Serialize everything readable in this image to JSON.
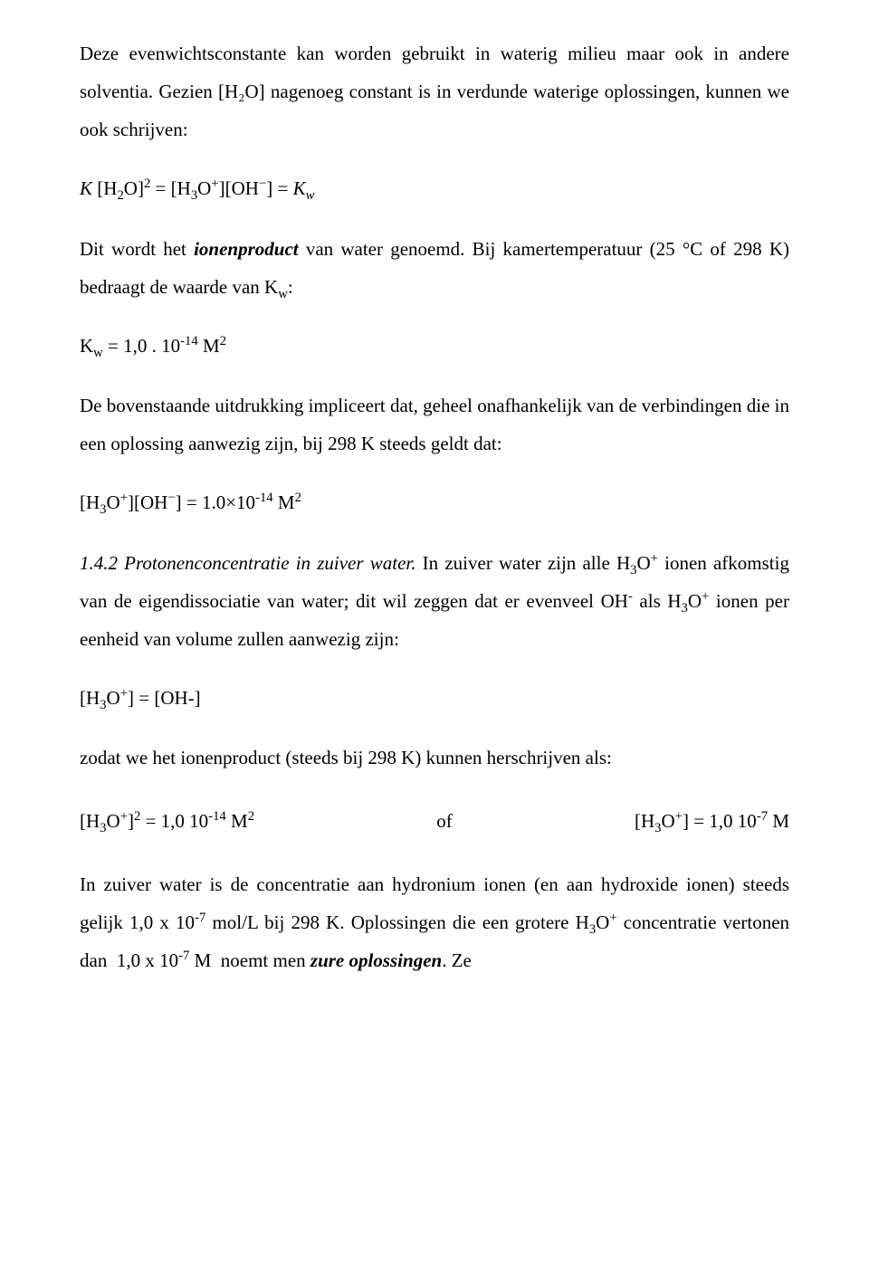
{
  "p1": "Deze evenwichtsconstante kan worden gebruikt in waterig milieu maar ook in andere solventia. Gezien [H₂O] nagenoeg constant is in verdunde waterige oplossingen, kunnen we ook schrijven:",
  "eq1_html": "<span class='eq-i'>K</span> [H<sub>2</sub>O]<sup>2</sup> = [H<sub>3</sub>O<sup>+</sup>][OH<sup>−</sup>] = <span class='eq-i'>K<sub>w</sub></span>",
  "p2_a": "Dit wordt het ",
  "p2_bi": "ionenproduct",
  "p2_b": " van water genoemd. Bij kamertemperatuur (25 °C of 298 K) bedraagt de waarde van K",
  "p2_sub": "w",
  "p2_c": ":",
  "eq2_html": "K<sub>w</sub> = 1,0 . 10<sup>-14</sup> M<sup>2</sup>",
  "p3": "De bovenstaande uitdrukking impliceert dat, geheel onafhankelijk van de verbindingen die in een oplossing aanwezig zijn, bij 298 K steeds geldt dat:",
  "eq3_html": "[H<sub>3</sub>O<sup>+</sup>][OH<sup>−</sup>] = 1.0×10<sup>-14</sup> M<sup>2</sup>",
  "p4_head": "1.4.2 Protonenconcentratie in zuiver water.",
  "p4_body_html": " In zuiver water zijn alle H<sub>3</sub>O<sup>+</sup> ionen afkomstig van de eigendissociatie van water; dit wil zeggen dat er evenveel OH<sup>-</sup> als H<sub>3</sub>O<sup>+</sup> ionen per eenheid van volume zullen aanwezig zijn:",
  "eq4_html": "[H<sub>3</sub>O<sup>+</sup>] = [OH-]",
  "p5": "zodat we het ionenproduct (steeds bij 298 K) kunnen herschrijven als:",
  "col_a_html": "[H<sub>3</sub>O<sup>+</sup>]<sup>2</sup> = 1,0 10<sup>-14</sup> M<sup>2</sup>",
  "col_b": "of",
  "col_c_html": "[H<sub>3</sub>O<sup>+</sup>] = 1,0 10<sup>-7</sup> M",
  "p6_html": "In zuiver water is de concentratie aan hydronium ionen (en aan hydroxide ionen) steeds gelijk 1,0 x 10<sup>-7</sup> mol/L bij 298 K. Oplossingen die een grotere H<sub>3</sub>O<sup>+</sup> concentratie vertonen dan&nbsp;&nbsp;1,0 x 10<sup>-7</sup> M&nbsp;&nbsp;noemt men ",
  "p6_bi": "zure oplossingen",
  "p6_tail": ". Ze"
}
